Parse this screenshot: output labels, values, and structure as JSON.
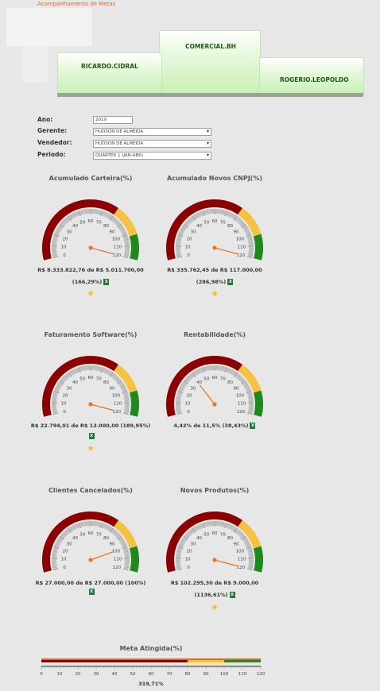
{
  "page": {
    "title": "Acompanhamento de Metas"
  },
  "podium": {
    "first": "COMERCIAL.BH",
    "second": "RICARDO.CIDRAL",
    "third": "ROGERIO.LEOPOLDO"
  },
  "filters": {
    "ano": {
      "label": "Ano:",
      "value": "2019"
    },
    "gerente": {
      "label": "Gerente:",
      "value": "HUDSON DE ALMEIDA"
    },
    "vendedor": {
      "label": "Vendedor:",
      "value": "HUDSON DE ALMEIDA"
    },
    "periodo": {
      "label": "Periodo:",
      "value": "QUARTER 1 (JAN-ABR)"
    }
  },
  "gauge_ticks": [
    "0",
    "10",
    "20",
    "30",
    "40",
    "50",
    "60",
    "70",
    "80",
    "90",
    "100",
    "110",
    "120"
  ],
  "gauges": [
    {
      "title": "Acumulado Carteira(%)",
      "line1": "R$ 8.333.822,76 de R$ 5.011.700,00",
      "line2": "(166,29%)",
      "value": 166.29,
      "star": true
    },
    {
      "title": "Acumulado Novos CNPJ(%)",
      "line1": "R$ 335.762,45 de R$ 117.000,00",
      "line2": "(286,98%)",
      "value": 286.98,
      "star": true
    },
    {
      "title": "Faturamento Software(%)",
      "line1": "R$ 22.794,01 de R$ 12.000,00 (189,95%)",
      "line2": "",
      "value": 189.95,
      "star": true
    },
    {
      "title": "Rentabilidade(%)",
      "line1": "4,42% de 11,5% (38,43%)",
      "line2": "",
      "value": 38.43,
      "star": false
    },
    {
      "title": "Clientes Cancelados(%)",
      "line1": "R$ 27.000,00 de R$ 27.000,00 (100%)",
      "line2": "",
      "value": 100,
      "star": false
    },
    {
      "title": "Novos Produtos(%)",
      "line1": "R$ 102.295,30 de R$ 9.000,00",
      "line2": "(1136,61%)",
      "value": 1136.61,
      "star": true
    }
  ],
  "meta": {
    "title": "Meta Atingida(%)",
    "value_text": "319,71%",
    "value": 319.71,
    "ticks": [
      "0",
      "10",
      "20",
      "30",
      "40",
      "50",
      "60",
      "70",
      "80",
      "90",
      "100",
      "110",
      "120"
    ]
  },
  "colors": {
    "red": "#8b0000",
    "yellow": "#f5c242",
    "green": "#1e8a1e",
    "needle": "#e87722",
    "scale": "#c4c4c4",
    "accent": "#e26a2c"
  }
}
